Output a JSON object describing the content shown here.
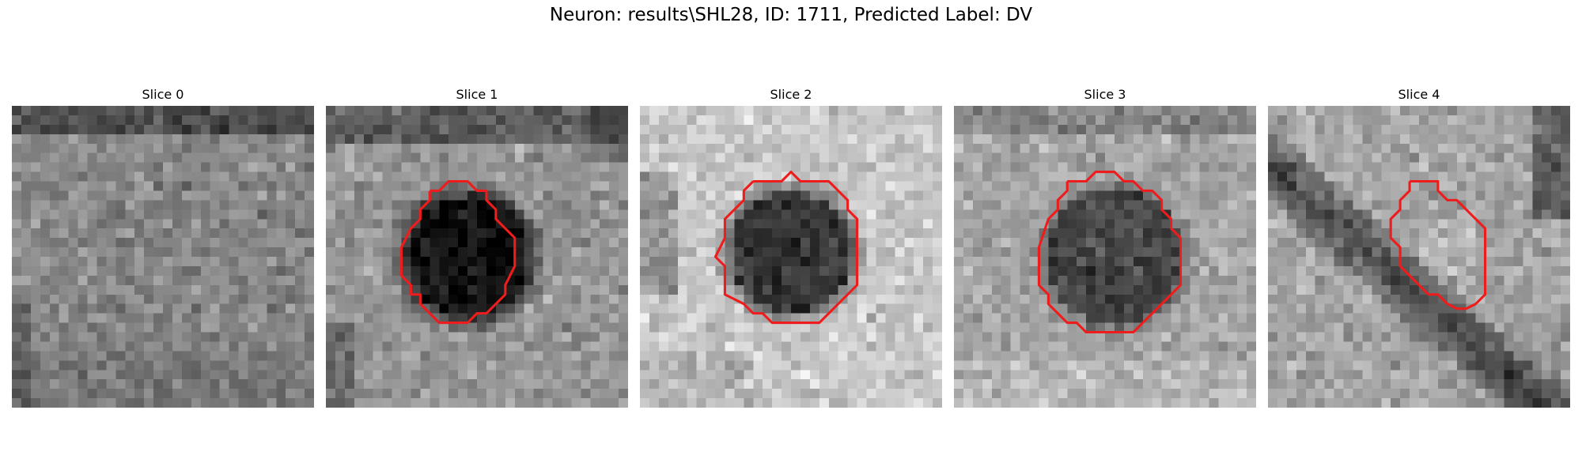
{
  "figure": {
    "title": "Neuron: results\\SHL28, ID: 1711, Predicted Label: DV"
  },
  "panels": [
    {
      "title": "Slice 0",
      "has_contour": false
    },
    {
      "title": "Slice 1",
      "has_contour": true
    },
    {
      "title": "Slice 2",
      "has_contour": true
    },
    {
      "title": "Slice 3",
      "has_contour": true
    },
    {
      "title": "Slice 4",
      "has_contour": true
    }
  ],
  "colors": {
    "contour": "#ee1c1c",
    "background": "#ffffff"
  }
}
